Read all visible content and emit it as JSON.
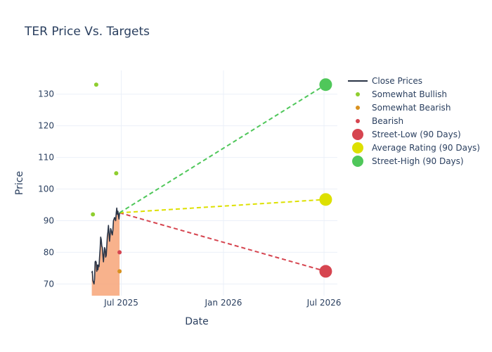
{
  "chart_data": {
    "type": "line",
    "title": "TER Price Vs. Targets",
    "xlabel": "Date",
    "ylabel": "Price",
    "x_range": [
      "2025-03-06",
      "2026-07-25"
    ],
    "y_range": [
      66.3,
      137.5
    ],
    "x_ticks": [
      {
        "date": "2025-07-01",
        "label": "Jul 2025"
      },
      {
        "date": "2026-01-01",
        "label": "Jan 2026"
      },
      {
        "date": "2026-07-01",
        "label": "Jul 2026"
      }
    ],
    "y_ticks": [
      70,
      80,
      90,
      100,
      110,
      120,
      130
    ],
    "grid": true,
    "legend_position": "right",
    "close_prices": {
      "name": "Close Prices",
      "color": "#2a3446",
      "fill_color": "#f7a578",
      "points": [
        [
          "2025-05-09",
          73.5
        ],
        [
          "2025-05-10",
          74.0
        ],
        [
          "2025-05-11",
          71.0
        ],
        [
          "2025-05-12",
          70.5
        ],
        [
          "2025-05-13",
          70.0
        ],
        [
          "2025-05-14",
          71.5
        ],
        [
          "2025-05-15",
          77.0
        ],
        [
          "2025-05-16",
          77.2
        ],
        [
          "2025-05-17",
          76.8
        ],
        [
          "2025-05-18",
          74.0
        ],
        [
          "2025-05-19",
          76.0
        ],
        [
          "2025-05-20",
          74.5
        ],
        [
          "2025-05-21",
          76.0
        ],
        [
          "2025-05-22",
          75.5
        ],
        [
          "2025-05-23",
          78.5
        ],
        [
          "2025-05-24",
          81.0
        ],
        [
          "2025-05-25",
          84.8
        ],
        [
          "2025-05-26",
          84.0
        ],
        [
          "2025-05-27",
          82.0
        ],
        [
          "2025-05-28",
          81.5
        ],
        [
          "2025-05-29",
          79.0
        ],
        [
          "2025-05-30",
          77.0
        ],
        [
          "2025-05-31",
          79.5
        ],
        [
          "2025-06-01",
          81.5
        ],
        [
          "2025-06-02",
          81.0
        ],
        [
          "2025-06-03",
          78.5
        ],
        [
          "2025-06-04",
          79.0
        ],
        [
          "2025-06-05",
          82.0
        ],
        [
          "2025-06-06",
          85.0
        ],
        [
          "2025-06-07",
          86.5
        ],
        [
          "2025-06-08",
          88.5
        ],
        [
          "2025-06-09",
          86.0
        ],
        [
          "2025-06-10",
          83.5
        ],
        [
          "2025-06-11",
          85.5
        ],
        [
          "2025-06-12",
          87.5
        ],
        [
          "2025-06-13",
          87.0
        ],
        [
          "2025-06-14",
          86.0
        ],
        [
          "2025-06-15",
          85.5
        ],
        [
          "2025-06-16",
          87.0
        ],
        [
          "2025-06-17",
          90.0
        ],
        [
          "2025-06-18",
          90.5
        ],
        [
          "2025-06-19",
          91.0
        ],
        [
          "2025-06-20",
          90.5
        ],
        [
          "2025-06-21",
          90.0
        ],
        [
          "2025-06-22",
          92.5
        ],
        [
          "2025-06-23",
          94.0
        ],
        [
          "2025-06-24",
          92.0
        ],
        [
          "2025-06-25",
          93.0
        ],
        [
          "2025-06-26",
          91.5
        ],
        [
          "2025-06-27",
          90.5
        ],
        [
          "2025-06-28",
          92.5
        ]
      ]
    },
    "analyst_ratings": [
      {
        "name": "Somewhat Bullish",
        "color": "#8fce2f",
        "points": [
          [
            "2025-05-11",
            92
          ],
          [
            "2025-05-17",
            133
          ],
          [
            "2025-06-22",
            105
          ]
        ]
      },
      {
        "name": "Somewhat Bearish",
        "color": "#d9911f",
        "points": [
          [
            "2025-06-28",
            74
          ]
        ]
      },
      {
        "name": "Bearish",
        "color": "#d64550",
        "points": [
          [
            "2025-06-28",
            80
          ]
        ]
      }
    ],
    "targets": [
      {
        "name": "Street-Low (90 Days)",
        "color": "#d64550",
        "start": [
          "2025-06-28",
          92.5
        ],
        "end": [
          "2026-07-04",
          74
        ]
      },
      {
        "name": "Average Rating (90 Days)",
        "color": "#dde000",
        "start": [
          "2025-06-28",
          92.5
        ],
        "end": [
          "2026-07-04",
          96.7
        ]
      },
      {
        "name": "Street-High (90 Days)",
        "color": "#4fc75a",
        "start": [
          "2025-06-28",
          92.5
        ],
        "end": [
          "2026-07-04",
          133
        ]
      }
    ],
    "legend": [
      {
        "label": "Close Prices",
        "kind": "line",
        "color": "#2a3446"
      },
      {
        "label": "Somewhat Bullish",
        "kind": "small-dot",
        "color": "#8fce2f"
      },
      {
        "label": "Somewhat Bearish",
        "kind": "small-dot",
        "color": "#d9911f"
      },
      {
        "label": "Bearish",
        "kind": "small-dot",
        "color": "#d64550"
      },
      {
        "label": "Street-Low (90 Days)",
        "kind": "big-dot",
        "color": "#d64550"
      },
      {
        "label": "Average Rating (90 Days)",
        "kind": "big-dot",
        "color": "#dde000"
      },
      {
        "label": "Street-High (90 Days)",
        "kind": "big-dot",
        "color": "#4fc75a"
      }
    ]
  }
}
